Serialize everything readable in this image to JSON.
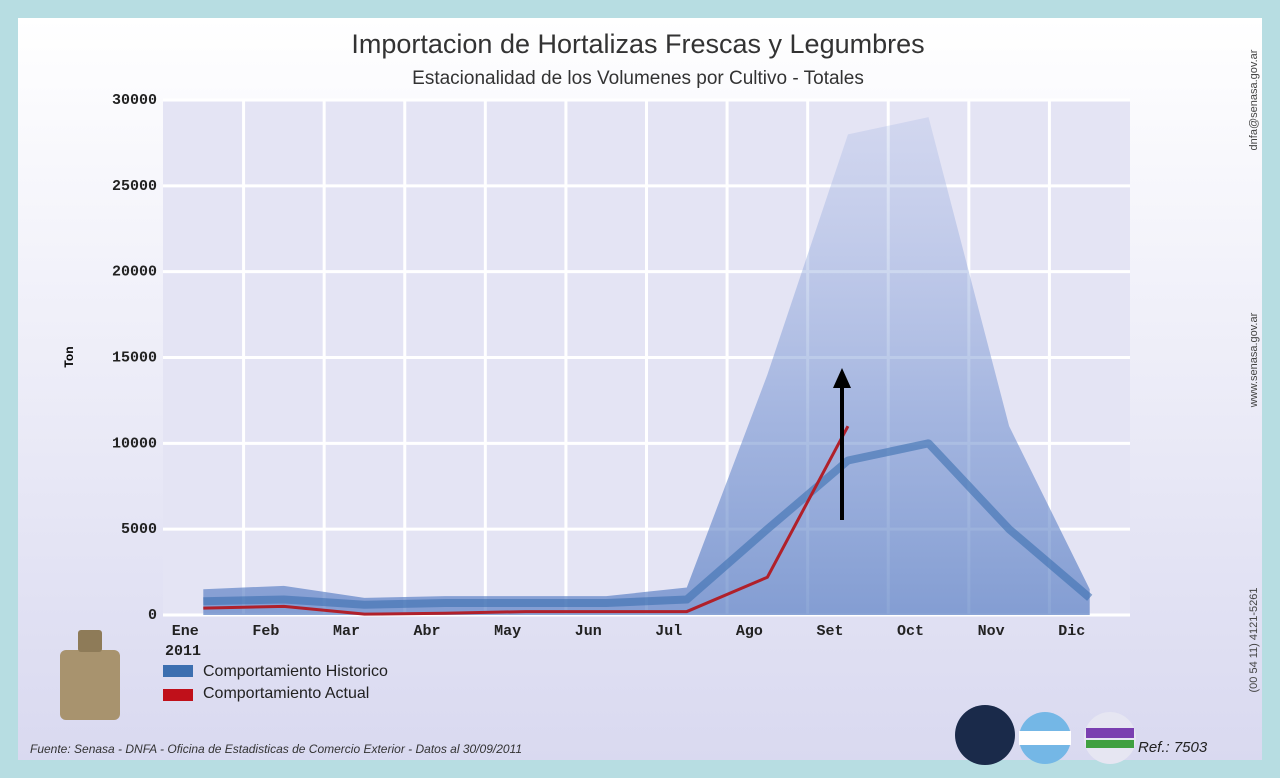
{
  "chart_data": {
    "type": "line",
    "title": "Importacion de Hortalizas Frescas y Legumbres",
    "subtitle": "Estacionalidad de los Volumenes por Cultivo - Totales",
    "y_label": "Ton",
    "x_sublabel": "2011",
    "categories": [
      "Ene",
      "Feb",
      "Mar",
      "Abr",
      "May",
      "Jun",
      "Jul",
      "Ago",
      "Set",
      "Oct",
      "Nov",
      "Dic"
    ],
    "ylim": [
      0,
      30000
    ],
    "yticks": [
      0,
      5000,
      10000,
      15000,
      20000,
      25000,
      30000
    ],
    "grid": true,
    "series": [
      {
        "name": "Comportamiento Historico",
        "color": "#3c6fb0",
        "values": [
          800,
          900,
          600,
          700,
          700,
          700,
          900,
          5000,
          9000,
          10000,
          5000,
          1000
        ],
        "upper": [
          1500,
          1700,
          1000,
          1100,
          1100,
          1100,
          1600,
          14000,
          28000,
          29000,
          11000,
          1500
        ]
      },
      {
        "name": "Comportamiento Actual",
        "color": "#b0202a",
        "values": [
          400,
          500,
          50,
          100,
          200,
          200,
          200,
          2200,
          11000,
          null,
          null,
          null
        ]
      }
    ],
    "footer": "Fuente: Senasa - DNFA - Oficina de Estadisticas de Comercio Exterior - Datos al 30/09/2011",
    "ref": "Ref.: 7503",
    "side_texts": [
      "dnfa@senasa.gov.ar",
      "www.senasa.gov.ar",
      "(00 54 11) 4121-5261"
    ]
  }
}
